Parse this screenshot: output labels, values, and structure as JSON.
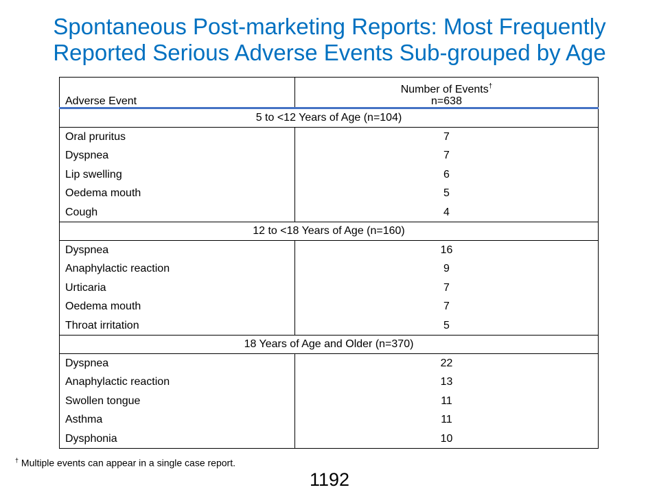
{
  "title": {
    "line1": "Spontaneous Post-marketing Reports: Most Frequently",
    "line2": "Reported Serious Adverse Events Sub-grouped by Age"
  },
  "table": {
    "header": {
      "event_col": "Adverse Event",
      "count_col": "Number of Events",
      "count_mark": "†",
      "count_n": "n=638"
    },
    "groups": [
      {
        "label": "5 to <12 Years of Age (n=104)",
        "rows": [
          {
            "event": "Oral pruritus",
            "count": "7"
          },
          {
            "event": "Dyspnea",
            "count": "7"
          },
          {
            "event": "Lip swelling",
            "count": "6"
          },
          {
            "event": "Oedema mouth",
            "count": "5"
          },
          {
            "event": "Cough",
            "count": "4"
          }
        ]
      },
      {
        "label": "12 to <18 Years of Age (n=160)",
        "rows": [
          {
            "event": "Dyspnea",
            "count": "16"
          },
          {
            "event": "Anaphylactic reaction",
            "count": "9"
          },
          {
            "event": "Urticaria",
            "count": "7"
          },
          {
            "event": "Oedema mouth",
            "count": "7"
          },
          {
            "event": "Throat irritation",
            "count": "5"
          }
        ]
      },
      {
        "label": "18 Years of Age and Older (n=370)",
        "rows": [
          {
            "event": "Dyspnea",
            "count": "22"
          },
          {
            "event": "Anaphylactic reaction",
            "count": "13"
          },
          {
            "event": "Swollen tongue",
            "count": "11"
          },
          {
            "event": "Asthma",
            "count": "11"
          },
          {
            "event": "Dysphonia",
            "count": "10"
          }
        ]
      }
    ]
  },
  "footnote": {
    "mark": "†",
    "text": " Multiple events can appear in a single case report."
  },
  "page_number": "1192",
  "colors": {
    "title": "#0070c0",
    "header_rule": "#4472c4"
  }
}
